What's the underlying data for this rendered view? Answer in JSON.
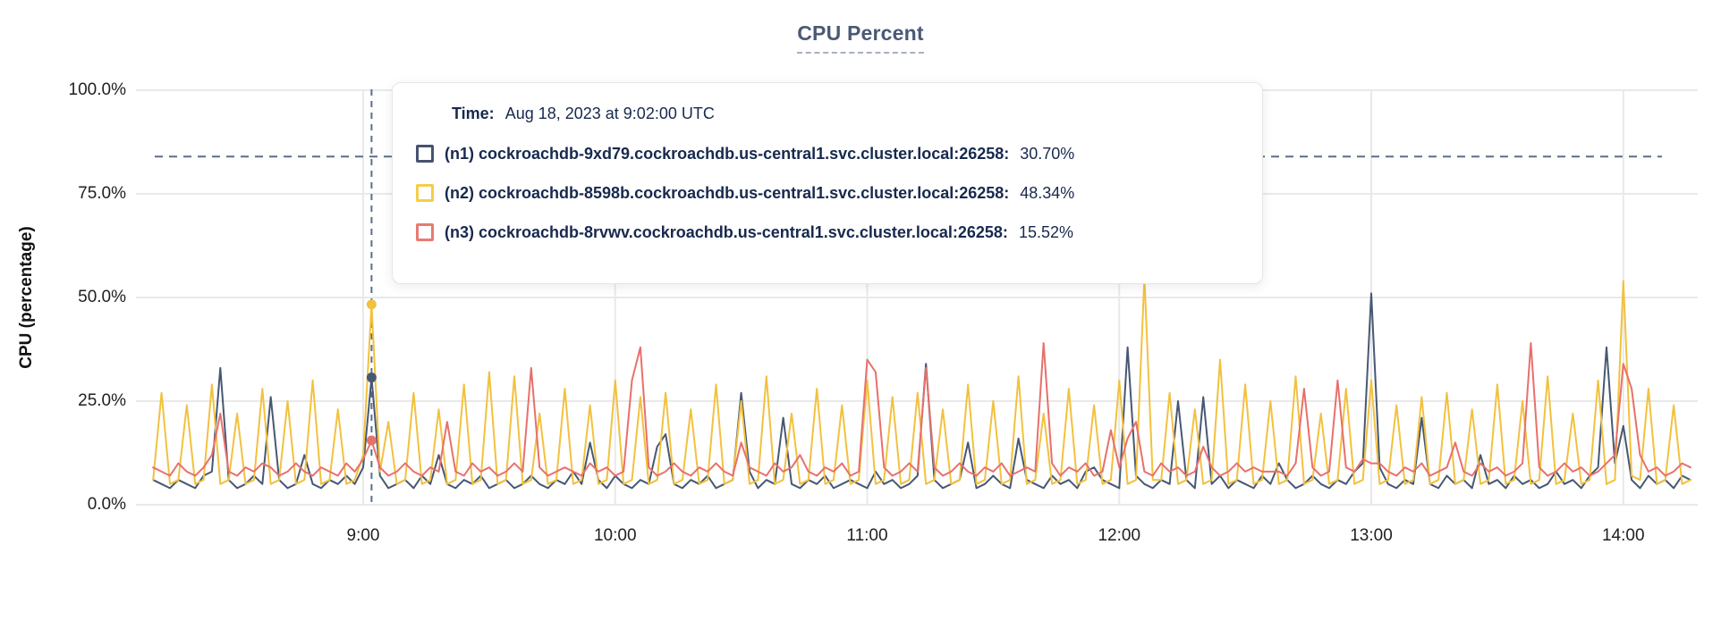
{
  "title": "CPU Percent",
  "axes": {
    "y_label": "CPU (percentage)",
    "y_ticks": [
      {
        "label": "0.0%",
        "value": 0
      },
      {
        "label": "25.0%",
        "value": 25
      },
      {
        "label": "50.0%",
        "value": 50
      },
      {
        "label": "75.0%",
        "value": 75
      },
      {
        "label": "100.0%",
        "value": 100
      }
    ],
    "x_ticks": [
      {
        "label": "9:00",
        "minute": 540
      },
      {
        "label": "10:00",
        "minute": 600
      },
      {
        "label": "11:00",
        "minute": 660
      },
      {
        "label": "12:00",
        "minute": 720
      },
      {
        "label": "13:00",
        "minute": 780
      },
      {
        "label": "14:00",
        "minute": 840
      }
    ]
  },
  "tooltip": {
    "time_label": "Time:",
    "time_value": "Aug 18, 2023 at 9:02:00 UTC",
    "rows": [
      {
        "label": "(n1) cockroachdb-9xd79.cockroachdb.us-central1.svc.cluster.local:26258:",
        "value": "30.70%",
        "swatch_color": "#47536e"
      },
      {
        "label": "(n2) cockroachdb-8598b.cockroachdb.us-central1.svc.cluster.local:26258:",
        "value": "48.34%",
        "swatch_color": "#f5cd47"
      },
      {
        "label": "(n3) cockroachdb-8rvwv.cockroachdb.us-central1.svc.cluster.local:26258:",
        "value": "15.52%",
        "swatch_color": "#e87a72"
      }
    ]
  },
  "colors": {
    "grid": "#e9e9e9",
    "crosshair": "#5b6f8c",
    "title": "#4a5a75",
    "tooltip_text": "#17294e"
  },
  "chart_data": {
    "type": "line",
    "title": "CPU Percent",
    "ylabel": "CPU (percentage)",
    "ylim": [
      0,
      100
    ],
    "x_domain_minutes": [
      490,
      856
    ],
    "x_start_minute": 490,
    "x_step_minute": 2,
    "grid": true,
    "legend_position": "tooltip-overlay",
    "threshold_percent": 84,
    "hover": {
      "minute": 542,
      "time_text": "Aug 18, 2023 at 9:02:00 UTC",
      "values": [
        30.7,
        48.34,
        15.52
      ]
    },
    "series": [
      {
        "name": "(n1) cockroachdb-9xd79.cockroachdb.us-central1.svc.cluster.local:26258",
        "color": "#475872",
        "values": [
          6,
          5,
          4,
          6,
          5,
          4,
          7,
          8,
          33,
          6,
          4,
          5,
          7,
          5,
          26,
          6,
          4,
          5,
          12,
          5,
          4,
          6,
          5,
          7,
          5,
          9,
          30.7,
          7,
          4,
          5,
          6,
          4,
          7,
          5,
          12,
          5,
          4,
          6,
          5,
          7,
          4,
          5,
          6,
          4,
          5,
          7,
          5,
          4,
          6,
          5,
          8,
          5,
          15,
          6,
          4,
          7,
          5,
          4,
          6,
          5,
          14,
          17,
          5,
          4,
          6,
          5,
          7,
          4,
          5,
          6,
          27,
          8,
          4,
          6,
          5,
          21,
          5,
          4,
          6,
          5,
          7,
          4,
          5,
          6,
          5,
          4,
          8,
          5,
          6,
          4,
          5,
          7,
          34,
          6,
          4,
          5,
          6,
          15,
          4,
          5,
          7,
          5,
          4,
          16,
          6,
          5,
          4,
          7,
          5,
          6,
          4,
          8,
          9,
          6,
          5,
          4,
          38,
          7,
          5,
          4,
          6,
          5,
          25,
          6,
          4,
          26,
          5,
          7,
          4,
          6,
          5,
          4,
          7,
          5,
          10,
          6,
          4,
          5,
          7,
          5,
          4,
          6,
          5,
          8,
          10,
          51,
          9,
          5,
          4,
          6,
          5,
          21,
          5,
          4,
          7,
          5,
          6,
          4,
          12,
          5,
          6,
          4,
          7,
          5,
          6,
          4,
          5,
          8,
          5,
          6,
          4,
          7,
          9,
          38,
          10,
          19,
          6,
          4,
          7,
          5,
          6,
          4,
          7,
          6
        ]
      },
      {
        "name": "(n2) cockroachdb-8598b.cockroachdb.us-central1.svc.cluster.local:26258",
        "color": "#f2c13e",
        "values": [
          6,
          27,
          5,
          6,
          24,
          5,
          6,
          29,
          5,
          6,
          22,
          5,
          6,
          28,
          5,
          6,
          25,
          5,
          6,
          30,
          5,
          6,
          23,
          5,
          6,
          12,
          48.3,
          8,
          20,
          5,
          6,
          27,
          5,
          6,
          23,
          5,
          6,
          29,
          5,
          6,
          32,
          5,
          6,
          31,
          5,
          6,
          22,
          5,
          6,
          28,
          5,
          6,
          24,
          5,
          6,
          30,
          5,
          6,
          26,
          5,
          6,
          27,
          5,
          6,
          23,
          5,
          6,
          29,
          5,
          6,
          25,
          5,
          6,
          31,
          5,
          6,
          22,
          5,
          6,
          28,
          5,
          6,
          24,
          5,
          6,
          30,
          5,
          6,
          26,
          5,
          6,
          27,
          5,
          6,
          23,
          5,
          6,
          29,
          5,
          6,
          25,
          5,
          6,
          31,
          5,
          6,
          22,
          5,
          6,
          28,
          5,
          6,
          24,
          5,
          6,
          30,
          5,
          6,
          55,
          6,
          6,
          27,
          5,
          6,
          23,
          5,
          6,
          35,
          5,
          6,
          29,
          5,
          6,
          25,
          5,
          6,
          31,
          5,
          6,
          22,
          5,
          6,
          28,
          5,
          6,
          30,
          5,
          6,
          24,
          5,
          6,
          26,
          5,
          6,
          27,
          5,
          6,
          23,
          5,
          6,
          29,
          5,
          6,
          25,
          5,
          6,
          31,
          5,
          6,
          22,
          5,
          6,
          30,
          5,
          6,
          54,
          7,
          6,
          28,
          5,
          6,
          24,
          5,
          6
        ]
      },
      {
        "name": "(n3) cockroachdb-8rvwv.cockroachdb.us-central1.svc.cluster.local:26258",
        "color": "#e8706b",
        "values": [
          9,
          8,
          7,
          10,
          8,
          7,
          9,
          12,
          22,
          8,
          7,
          9,
          8,
          10,
          9,
          7,
          8,
          10,
          8,
          7,
          9,
          8,
          7,
          10,
          8,
          11,
          15.5,
          9,
          7,
          8,
          10,
          8,
          7,
          9,
          8,
          20,
          8,
          7,
          10,
          8,
          9,
          7,
          8,
          10,
          8,
          33,
          9,
          7,
          8,
          9,
          8,
          7,
          10,
          8,
          9,
          7,
          8,
          30,
          38,
          9,
          7,
          8,
          10,
          8,
          7,
          9,
          8,
          10,
          8,
          7,
          15,
          9,
          8,
          7,
          10,
          8,
          9,
          12,
          8,
          7,
          9,
          8,
          10,
          7,
          8,
          35,
          32,
          9,
          7,
          8,
          10,
          8,
          33,
          9,
          7,
          8,
          10,
          8,
          7,
          9,
          8,
          10,
          7,
          8,
          9,
          8,
          39,
          10,
          7,
          9,
          8,
          10,
          7,
          8,
          18,
          9,
          16,
          20,
          8,
          7,
          10,
          8,
          9,
          7,
          8,
          14,
          9,
          7,
          8,
          10,
          8,
          9,
          8,
          8,
          8,
          7,
          10,
          28,
          9,
          7,
          8,
          30,
          9,
          8,
          11,
          10,
          10,
          8,
          7,
          9,
          8,
          10,
          7,
          8,
          9,
          15,
          8,
          7,
          10,
          8,
          9,
          7,
          8,
          10,
          39,
          9,
          7,
          8,
          10,
          8,
          9,
          7,
          8,
          10,
          12,
          34,
          28,
          12,
          8,
          9,
          7,
          8,
          10,
          9
        ]
      }
    ]
  }
}
